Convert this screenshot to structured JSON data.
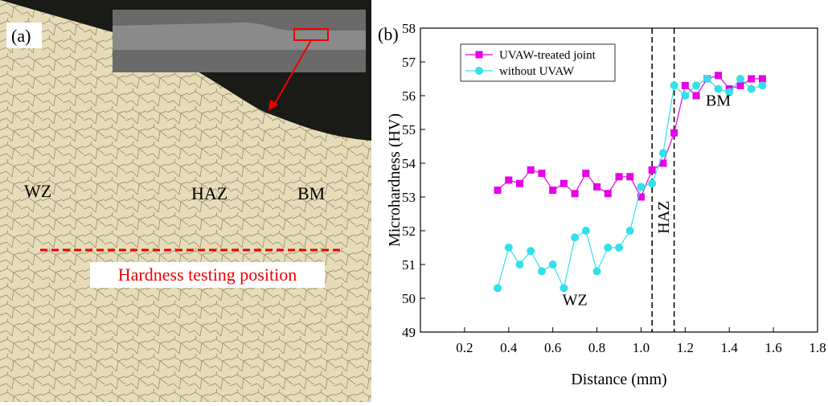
{
  "panel_a": {
    "label": "(a)",
    "wz": "WZ",
    "haz": "HAZ",
    "bm": "BM",
    "caption": "Hardness testing position"
  },
  "chart_data": {
    "type": "line",
    "panel_label": "(b)",
    "x_label": "Distance (mm)",
    "y_label": "Microhardness (HV)",
    "x": [
      0.35,
      0.4,
      0.45,
      0.5,
      0.55,
      0.6,
      0.65,
      0.7,
      0.75,
      0.8,
      0.85,
      0.9,
      0.95,
      1.0,
      1.05,
      1.1,
      1.15,
      1.2,
      1.25,
      1.3,
      1.35,
      1.4,
      1.45,
      1.5,
      1.55
    ],
    "series": [
      {
        "name": "UVAW-treated joint",
        "color": "#e600e6",
        "marker": "square",
        "values": [
          53.2,
          53.5,
          53.4,
          53.8,
          53.7,
          53.2,
          53.4,
          53.1,
          53.7,
          53.3,
          53.1,
          53.6,
          53.6,
          53.0,
          53.8,
          54.0,
          54.9,
          56.3,
          56.0,
          56.5,
          56.6,
          56.2,
          56.3,
          56.5,
          56.5
        ]
      },
      {
        "name": "without UVAW",
        "color": "#33e0e8",
        "marker": "circle",
        "values": [
          50.3,
          51.5,
          51.0,
          51.4,
          50.8,
          51.0,
          50.3,
          51.8,
          52.0,
          50.8,
          51.5,
          51.5,
          52.0,
          53.3,
          53.4,
          54.3,
          56.3,
          56.0,
          56.3,
          56.5,
          56.2,
          56.1,
          56.5,
          56.2,
          56.3
        ]
      }
    ],
    "boundary_lines": [
      1.05,
      1.15
    ],
    "annotations": {
      "wz": "WZ",
      "haz": "HAZ",
      "bm": "BM"
    },
    "xlim": [
      0,
      1.8
    ],
    "xticks": [
      0.2,
      0.4,
      0.6,
      0.8,
      {
        "value": 1,
        "label": "1.0"
      },
      1.2,
      1.4,
      1.6,
      1.8
    ],
    "ylim": [
      49,
      58
    ],
    "yticks": [
      49,
      50,
      51,
      52,
      53,
      54,
      55,
      56,
      57,
      58
    ],
    "legend": "upper left"
  }
}
